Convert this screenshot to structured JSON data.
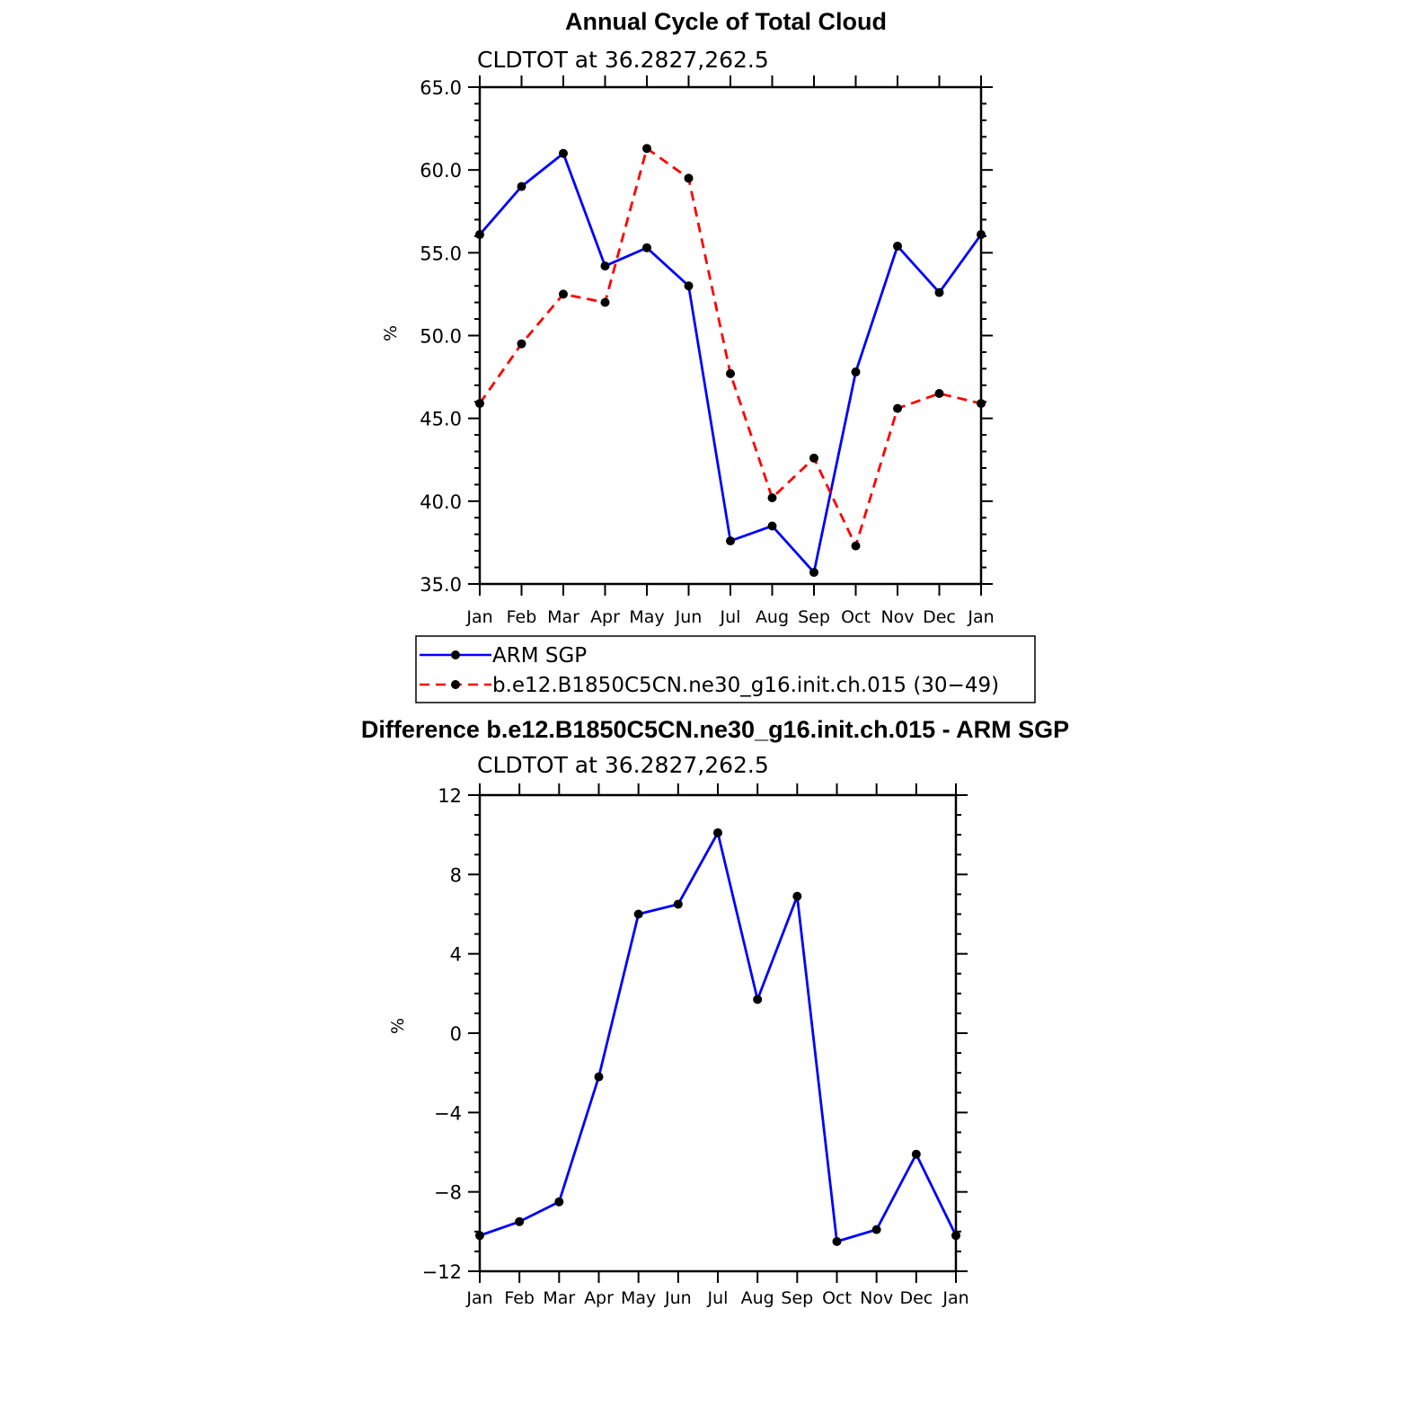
{
  "figure_title": "Annual Cycle of Total Cloud",
  "chart_data": [
    {
      "type": "line",
      "id": "annual-cycle",
      "title": "Annual Cycle of Total Cloud",
      "subtitle": "CLDTOT at 36.2827,262.5",
      "ylabel": "%",
      "xlabel": "",
      "categories": [
        "Jan",
        "Feb",
        "Mar",
        "Apr",
        "May",
        "Jun",
        "Jul",
        "Aug",
        "Sep",
        "Oct",
        "Nov",
        "Dec",
        "Jan"
      ],
      "ylim": [
        35.0,
        65.0
      ],
      "yticks": [
        35.0,
        40.0,
        45.0,
        50.0,
        55.0,
        60.0,
        65.0
      ],
      "yticklabels": [
        "35.0",
        "40.0",
        "45.0",
        "50.0",
        "55.0",
        "60.0",
        "65.0"
      ],
      "legend_position": "below",
      "series": [
        {
          "name": "ARM SGP",
          "color": "#0000ff",
          "dash": "solid",
          "marker": "dot",
          "values": [
            56.1,
            59.0,
            61.0,
            54.2,
            55.3,
            53.0,
            37.6,
            38.5,
            35.7,
            47.8,
            55.4,
            52.6,
            56.1
          ]
        },
        {
          "name": "b.e12.B1850C5CN.ne30_g16.init.ch.015 (30−49)",
          "color": "#ff0000",
          "dash": "dashed",
          "marker": "dot",
          "values": [
            45.9,
            49.5,
            52.5,
            52.0,
            61.3,
            59.5,
            47.7,
            40.2,
            42.6,
            37.3,
            45.6,
            46.5,
            45.9
          ]
        }
      ]
    },
    {
      "type": "line",
      "id": "difference",
      "title": "Difference b.e12.B1850C5CN.ne30_g16.init.ch.015 - ARM SGP",
      "subtitle": "CLDTOT at 36.2827,262.5",
      "ylabel": "%",
      "xlabel": "",
      "categories": [
        "Jan",
        "Feb",
        "Mar",
        "Apr",
        "May",
        "Jun",
        "Jul",
        "Aug",
        "Sep",
        "Oct",
        "Nov",
        "Dec",
        "Jan"
      ],
      "ylim": [
        -12,
        12
      ],
      "yticks": [
        -12,
        -8,
        -4,
        0,
        4,
        8,
        12
      ],
      "yticklabels": [
        "−12",
        "−8",
        "−4",
        "0",
        "4",
        "8",
        "12"
      ],
      "series": [
        {
          "name": "",
          "color": "#0000ff",
          "dash": "solid",
          "marker": "dot",
          "values": [
            -10.2,
            -9.5,
            -8.5,
            -2.2,
            6.0,
            6.5,
            10.1,
            1.7,
            6.9,
            -10.5,
            -9.9,
            -6.1,
            -10.2
          ]
        }
      ]
    }
  ]
}
